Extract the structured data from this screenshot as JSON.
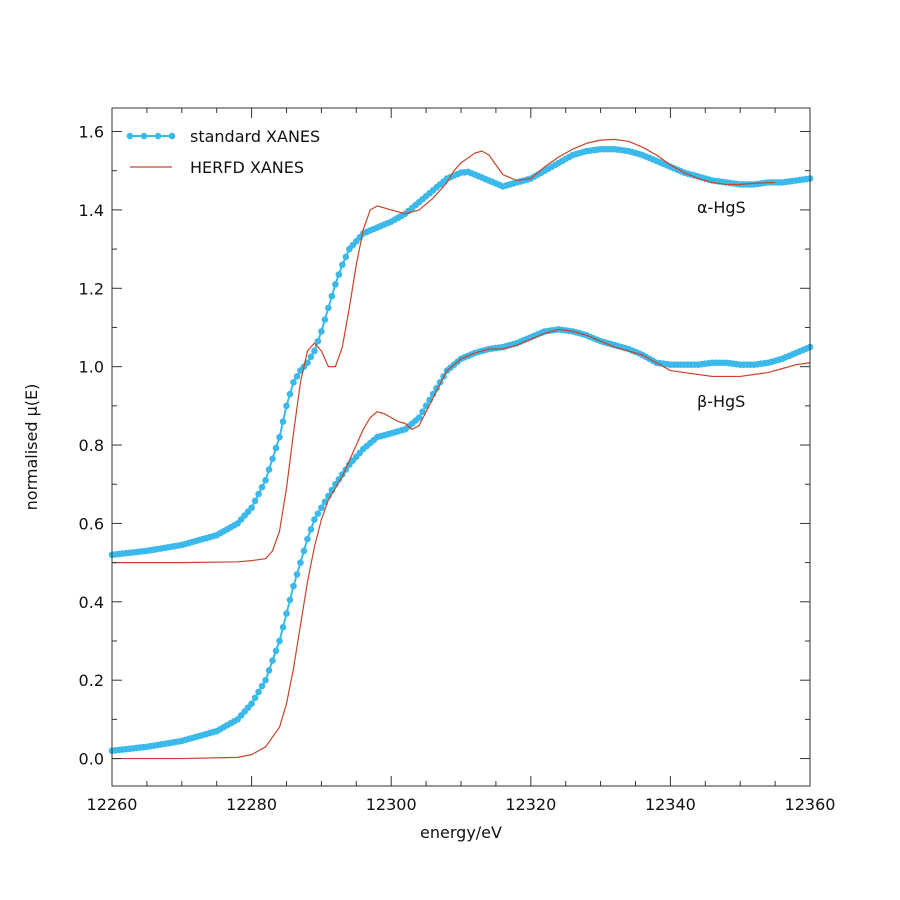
{
  "chart_data": {
    "type": "line",
    "xlabel": "energy/eV",
    "ylabel": "normalised μ(E)",
    "xlim": [
      12260,
      12360
    ],
    "ylim": [
      -0.07,
      1.66
    ],
    "xticks": [
      12260,
      12280,
      12300,
      12320,
      12340,
      12360
    ],
    "yticks": [
      0.0,
      0.2,
      0.4,
      0.6,
      0.8,
      1.0,
      1.2,
      1.4,
      1.6
    ],
    "xtick_labels": [
      "12260",
      "12280",
      "12300",
      "12320",
      "12340",
      "12360"
    ],
    "ytick_labels": [
      "0.0",
      "0.2",
      "0.4",
      "0.6",
      "0.8",
      "1.0",
      "1.2",
      "1.4",
      "1.6"
    ],
    "grid": false,
    "legend": {
      "position": "top-left",
      "entries": [
        {
          "label": "standard XANES",
          "style": "line-dots",
          "color": "#3bb9ea"
        },
        {
          "label": "HERFD XANES",
          "style": "line",
          "color": "#c8442a"
        }
      ]
    },
    "annotations": [
      {
        "text": "α-HgS",
        "x": 12350,
        "y": 1.38
      },
      {
        "text": "β-HgS",
        "x": 12350,
        "y": 0.88
      }
    ],
    "colors": {
      "standard": "#3bb9ea",
      "herfd": "#c8442a"
    },
    "series": [
      {
        "label_ref": "α-HgS standard XANES",
        "style": "line-dots",
        "color": "#3bb9ea",
        "x": [
          12260,
          12265,
          12270,
          12275,
          12278,
          12280,
          12282,
          12284,
          12285,
          12286,
          12287,
          12288,
          12289,
          12290,
          12291,
          12292,
          12293,
          12294,
          12295,
          12296,
          12298,
          12300,
          12302,
          12304,
          12306,
          12308,
          12310,
          12311,
          12312,
          12314,
          12316,
          12318,
          12320,
          12322,
          12324,
          12326,
          12328,
          12330,
          12332,
          12334,
          12336,
          12338,
          12340,
          12342,
          12344,
          12346,
          12348,
          12350,
          12352,
          12354,
          12356,
          12358,
          12360
        ],
        "y": [
          0.52,
          0.53,
          0.545,
          0.57,
          0.6,
          0.64,
          0.71,
          0.82,
          0.9,
          0.96,
          0.99,
          1.01,
          1.04,
          1.09,
          1.15,
          1.21,
          1.26,
          1.3,
          1.32,
          1.34,
          1.355,
          1.37,
          1.39,
          1.42,
          1.45,
          1.48,
          1.495,
          1.497,
          1.49,
          1.475,
          1.46,
          1.47,
          1.48,
          1.5,
          1.52,
          1.54,
          1.55,
          1.555,
          1.555,
          1.55,
          1.54,
          1.525,
          1.51,
          1.495,
          1.485,
          1.475,
          1.47,
          1.465,
          1.465,
          1.47,
          1.47,
          1.475,
          1.48
        ]
      },
      {
        "label_ref": "α-HgS HERFD XANES",
        "style": "line",
        "color": "#c8442a",
        "x": [
          12260,
          12270,
          12278,
          12280,
          12282,
          12283,
          12284,
          12285,
          12286,
          12287,
          12288,
          12289,
          12290,
          12291,
          12292,
          12293,
          12294,
          12295,
          12296,
          12297,
          12298,
          12299,
          12300,
          12302,
          12304,
          12306,
          12308,
          12309,
          12310,
          12312,
          12313,
          12314,
          12316,
          12318,
          12320,
          12322,
          12324,
          12326,
          12328,
          12330,
          12332,
          12334,
          12336,
          12338,
          12340,
          12342,
          12344,
          12346,
          12348,
          12350,
          12352,
          12355
        ],
        "y": [
          0.5,
          0.5,
          0.502,
          0.505,
          0.51,
          0.53,
          0.58,
          0.69,
          0.83,
          0.96,
          1.04,
          1.06,
          1.04,
          1.0,
          1.0,
          1.05,
          1.15,
          1.26,
          1.35,
          1.4,
          1.41,
          1.405,
          1.4,
          1.39,
          1.4,
          1.43,
          1.47,
          1.5,
          1.52,
          1.545,
          1.55,
          1.54,
          1.49,
          1.475,
          1.48,
          1.51,
          1.535,
          1.555,
          1.57,
          1.578,
          1.58,
          1.575,
          1.56,
          1.54,
          1.515,
          1.495,
          1.48,
          1.47,
          1.465,
          1.465,
          1.468,
          1.47
        ]
      },
      {
        "label_ref": "β-HgS standard XANES",
        "style": "line-dots",
        "color": "#3bb9ea",
        "x": [
          12260,
          12265,
          12270,
          12275,
          12278,
          12280,
          12282,
          12284,
          12285,
          12286,
          12287,
          12288,
          12289,
          12290,
          12291,
          12292,
          12294,
          12296,
          12298,
          12300,
          12302,
          12304,
          12306,
          12308,
          12310,
          12312,
          12314,
          12316,
          12318,
          12320,
          12322,
          12324,
          12326,
          12328,
          12330,
          12332,
          12334,
          12336,
          12338,
          12340,
          12342,
          12344,
          12346,
          12348,
          12350,
          12352,
          12354,
          12356,
          12358,
          12360
        ],
        "y": [
          0.02,
          0.03,
          0.045,
          0.07,
          0.1,
          0.14,
          0.2,
          0.3,
          0.37,
          0.44,
          0.5,
          0.56,
          0.61,
          0.64,
          0.67,
          0.7,
          0.75,
          0.79,
          0.82,
          0.83,
          0.84,
          0.87,
          0.93,
          0.99,
          1.02,
          1.035,
          1.045,
          1.05,
          1.06,
          1.075,
          1.09,
          1.095,
          1.09,
          1.08,
          1.065,
          1.055,
          1.045,
          1.03,
          1.01,
          1.005,
          1.005,
          1.005,
          1.01,
          1.01,
          1.005,
          1.005,
          1.01,
          1.02,
          1.035,
          1.05
        ]
      },
      {
        "label_ref": "β-HgS HERFD XANES",
        "style": "line",
        "color": "#c8442a",
        "x": [
          12260,
          12270,
          12278,
          12280,
          12282,
          12284,
          12285,
          12286,
          12287,
          12288,
          12289,
          12290,
          12291,
          12292,
          12293,
          12294,
          12295,
          12296,
          12297,
          12298,
          12299,
          12300,
          12301,
          12302,
          12303,
          12304,
          12306,
          12308,
          12310,
          12312,
          12314,
          12316,
          12318,
          12320,
          12322,
          12324,
          12326,
          12328,
          12330,
          12332,
          12334,
          12336,
          12338,
          12340,
          12342,
          12344,
          12346,
          12348,
          12350,
          12352,
          12354,
          12356,
          12358,
          12360
        ],
        "y": [
          0.0,
          0.0,
          0.003,
          0.01,
          0.03,
          0.08,
          0.14,
          0.23,
          0.34,
          0.45,
          0.54,
          0.61,
          0.66,
          0.69,
          0.72,
          0.76,
          0.8,
          0.84,
          0.87,
          0.885,
          0.88,
          0.87,
          0.86,
          0.855,
          0.84,
          0.85,
          0.92,
          0.99,
          1.02,
          1.035,
          1.045,
          1.045,
          1.055,
          1.07,
          1.085,
          1.095,
          1.09,
          1.08,
          1.065,
          1.05,
          1.04,
          1.03,
          1.01,
          0.99,
          0.985,
          0.98,
          0.975,
          0.975,
          0.975,
          0.98,
          0.985,
          0.995,
          1.005,
          1.01
        ]
      }
    ]
  }
}
